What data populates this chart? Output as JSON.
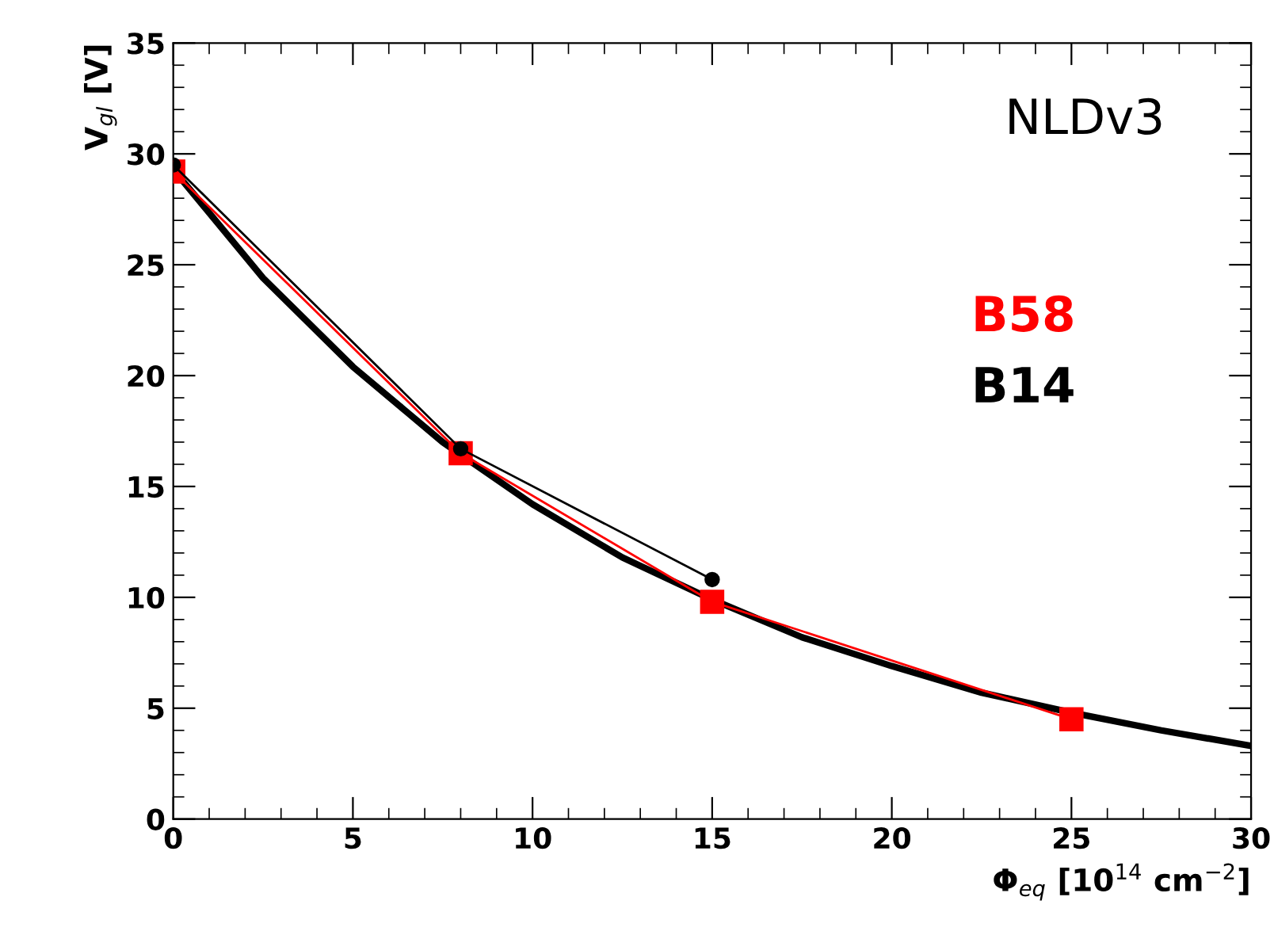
{
  "chart_data": {
    "type": "line",
    "xlabel": "Φ$_{eq}$ [10$^{14}$ cm$^{−2}$]",
    "ylabel": "V$_{gl}$ [V]",
    "annotations": [
      "NLDv3"
    ],
    "xlim": [
      0,
      30
    ],
    "xticks": [
      0,
      5,
      10,
      15,
      20,
      25,
      30
    ],
    "ylim": [
      0,
      35
    ],
    "yticks": [
      0,
      5,
      10,
      15,
      20,
      25,
      30,
      35
    ],
    "grid": false,
    "legend": "right",
    "series": [
      {
        "color": "#000000",
        "x": [
          0,
          2.5,
          5,
          7.5,
          10,
          12.5,
          15,
          17.5,
          20,
          22.5,
          25,
          27.5,
          30
        ],
        "values": [
          29.3,
          24.4,
          20.4,
          17.0,
          14.2,
          11.8,
          9.9,
          8.2,
          6.9,
          5.7,
          4.8,
          4.0,
          3.3
        ],
        "marker": "none"
      },
      {
        "name": "B58",
        "color": "#ff0000",
        "x": [
          0,
          8,
          15,
          25
        ],
        "values": [
          29.2,
          16.5,
          9.8,
          4.5
        ],
        "marker": "square"
      },
      {
        "name": "B14",
        "color": "#000000",
        "x": [
          0,
          8,
          15
        ],
        "values": [
          29.5,
          16.7,
          10.8
        ],
        "marker": "circle"
      }
    ]
  }
}
